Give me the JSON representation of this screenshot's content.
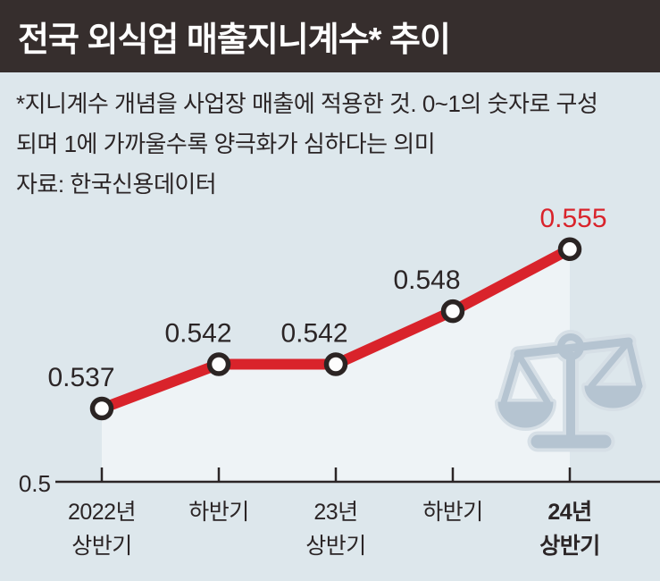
{
  "header": {
    "title": "전국 외식업 매출지니계수* 추이",
    "bg_color": "#362e2d",
    "text_color": "#ffffff"
  },
  "notes": {
    "footnote_line1": "*지니계수 개념을 사업장 매출에 적용한 것. 0~1의 숫자로 구성",
    "footnote_line2": "되며 1에 가까울수록 양극화가 심하다는 의미",
    "source": "자료: 한국신용데이터"
  },
  "chart_data": {
    "type": "line",
    "title": "전국 외식업 매출지니계수* 추이",
    "categories": [
      "2022년 상반기",
      "하반기",
      "23년 상반기",
      "하반기",
      "24년 상반기"
    ],
    "category_lines": [
      [
        "2022년",
        "상반기"
      ],
      [
        "하반기"
      ],
      [
        "23년",
        "상반기"
      ],
      [
        "하반기"
      ],
      [
        "24년",
        "상반기"
      ]
    ],
    "values": [
      0.537,
      0.542,
      0.542,
      0.548,
      0.555
    ],
    "value_labels": [
      "0.537",
      "0.542",
      "0.542",
      "0.548",
      "0.555"
    ],
    "baseline_tick_label": "0.5",
    "ylim_min": 0.5,
    "highlight_index": 4,
    "grid": false,
    "legend": false,
    "colors": {
      "line": "#d9232b",
      "highlight_label": "#d9232b",
      "value_label": "#2b2526",
      "marker_fill": "#fdfdfd",
      "marker_stroke": "#2b2423",
      "axis": "#2b2526",
      "area_fill": "#eef3f6",
      "background": "#dde7ec",
      "watermark": "#b5c4d1",
      "watermark_halo": "#d6dfe6"
    }
  },
  "icons": {
    "watermark": "balance-scale-icon"
  }
}
